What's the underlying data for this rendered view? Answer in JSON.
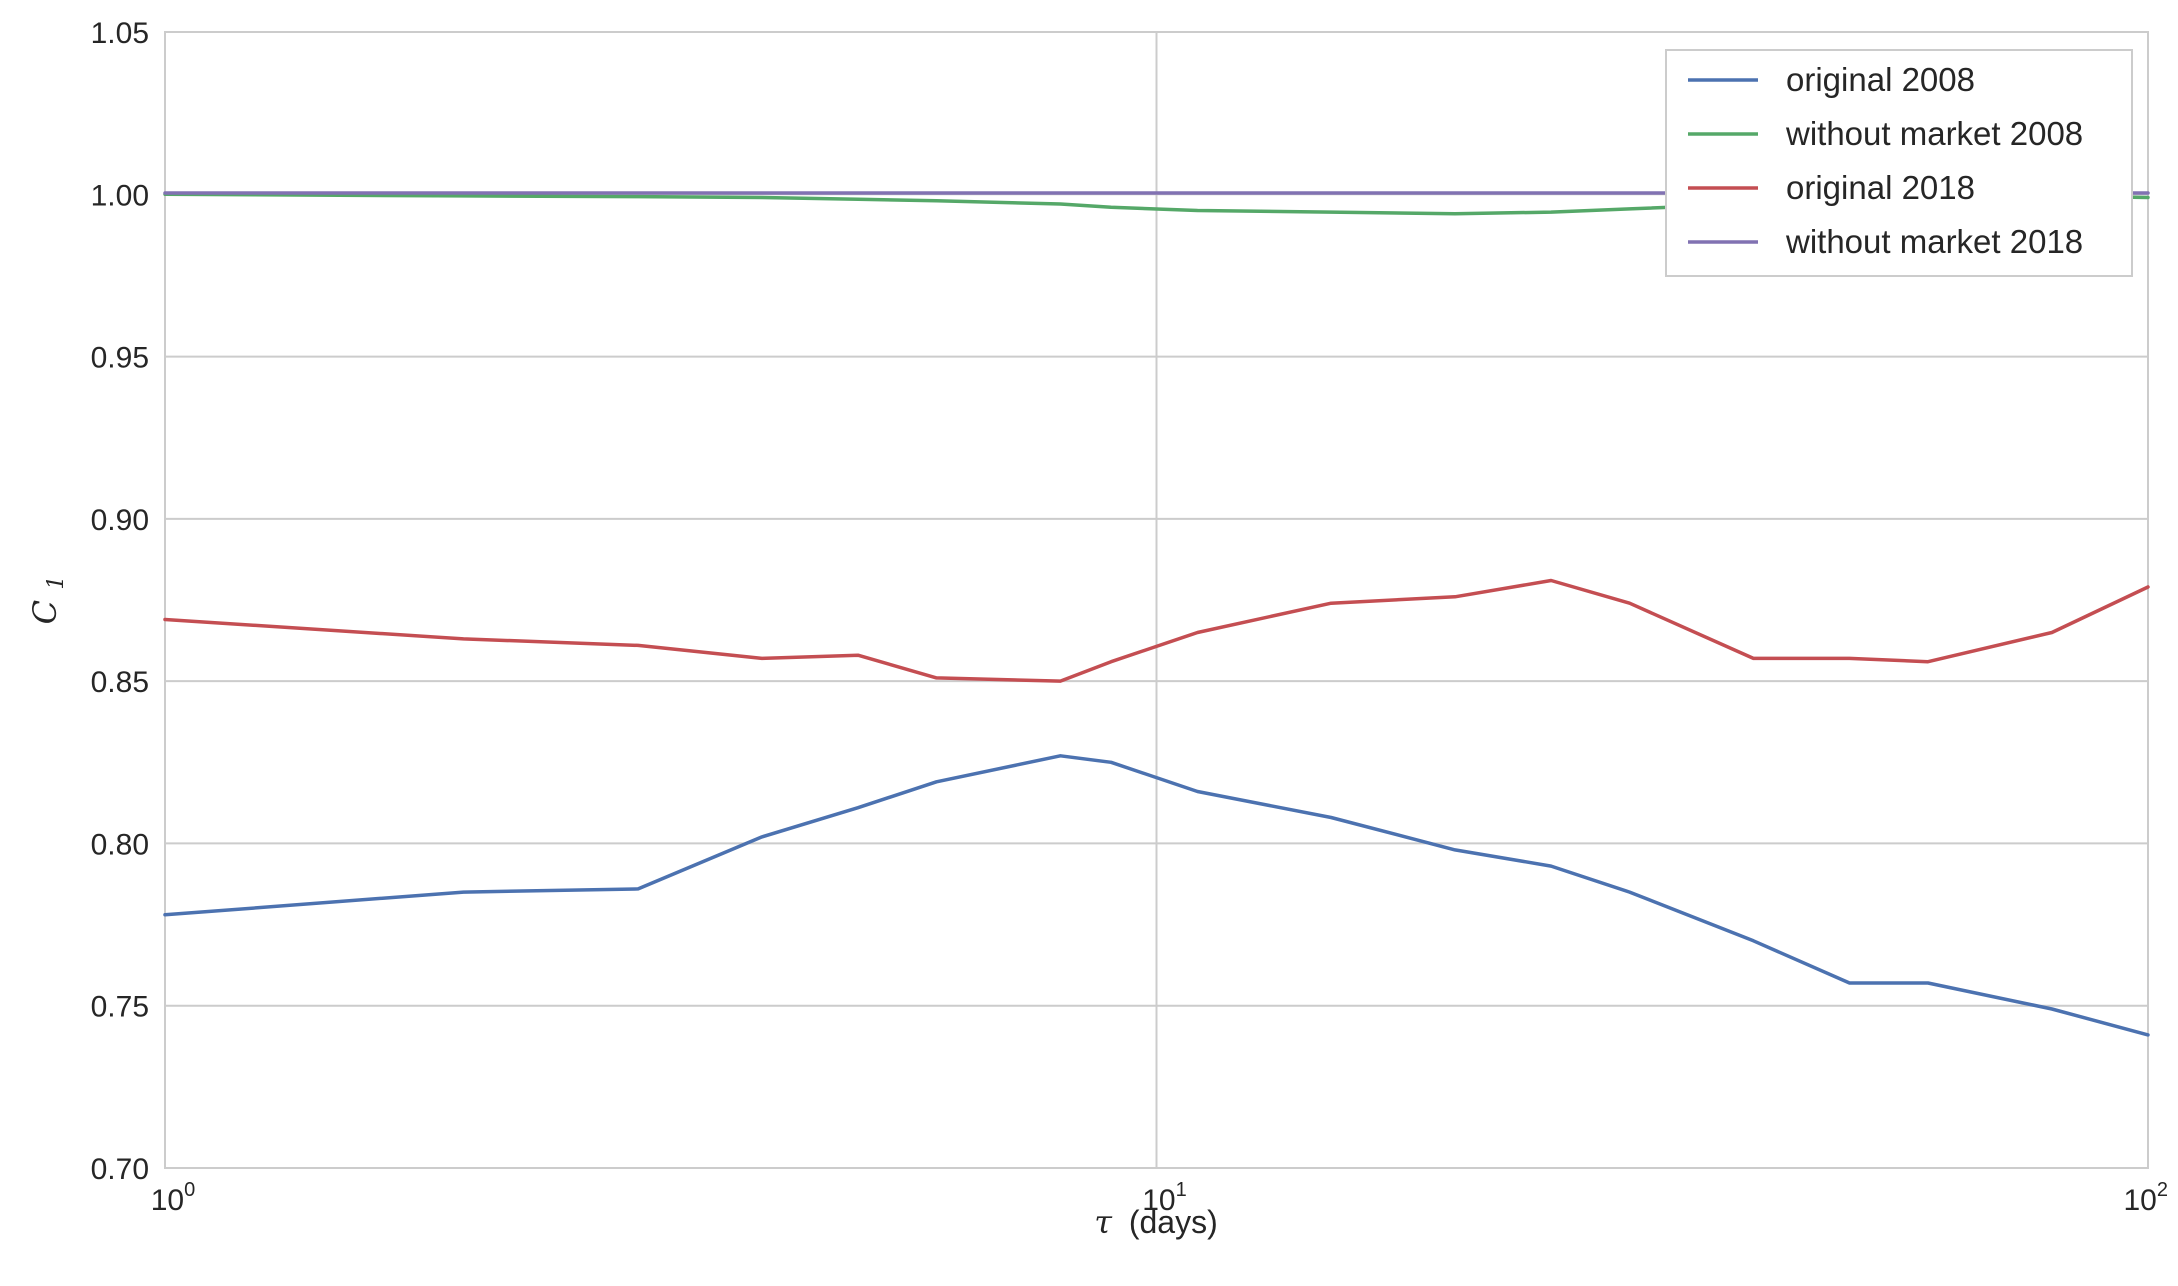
{
  "chart_data": {
    "type": "line",
    "xscale": "log",
    "xlabel_symbol": "τ",
    "xlabel": "(days)",
    "ylabel_symbol": "C",
    "ylabel_sub": "1",
    "xlim": [
      1,
      100
    ],
    "ylim": [
      0.7,
      1.05
    ],
    "grid": true,
    "legend_position": "top-right",
    "x_ticks": [
      {
        "value": 1,
        "base": "10",
        "exp": "0"
      },
      {
        "value": 10,
        "base": "10",
        "exp": "1"
      },
      {
        "value": 100,
        "base": "10",
        "exp": "2"
      }
    ],
    "y_ticks": [
      {
        "value": 0.7,
        "label": "0.70"
      },
      {
        "value": 0.75,
        "label": "0.75"
      },
      {
        "value": 0.8,
        "label": "0.80"
      },
      {
        "value": 0.85,
        "label": "0.85"
      },
      {
        "value": 0.9,
        "label": "0.90"
      },
      {
        "value": 0.95,
        "label": "0.95"
      },
      {
        "value": 1.0,
        "label": "1.00"
      },
      {
        "value": 1.05,
        "label": "1.05"
      }
    ],
    "x": [
      1,
      2,
      3,
      4,
      5,
      6,
      8,
      9,
      11,
      15,
      20,
      25,
      30,
      40,
      50,
      60,
      80,
      100
    ],
    "series": [
      {
        "name": "original 2008",
        "color": "#4c72b0",
        "values": [
          0.778,
          0.785,
          0.786,
          0.802,
          0.811,
          0.819,
          0.827,
          0.825,
          0.816,
          0.808,
          0.798,
          0.793,
          0.785,
          0.77,
          0.757,
          0.757,
          0.749,
          0.741
        ]
      },
      {
        "name": "without market 2008",
        "color": "#55a868",
        "values": [
          1.0,
          0.9995,
          0.9993,
          0.999,
          0.9985,
          0.998,
          0.997,
          0.996,
          0.995,
          0.9945,
          0.994,
          0.9945,
          0.9955,
          0.997,
          0.998,
          0.999,
          0.9995,
          0.999
        ]
      },
      {
        "name": "original 2018",
        "color": "#c44e52",
        "values": [
          0.869,
          0.863,
          0.861,
          0.857,
          0.858,
          0.851,
          0.85,
          0.856,
          0.865,
          0.874,
          0.876,
          0.881,
          0.874,
          0.857,
          0.857,
          0.856,
          0.865,
          0.879
        ]
      },
      {
        "name": "without market 2018",
        "color": "#8172b2",
        "values": [
          1.0004,
          1.0004,
          1.0004,
          1.0004,
          1.0004,
          1.0004,
          1.0004,
          1.0004,
          1.0004,
          1.0004,
          1.0004,
          1.0004,
          1.0004,
          1.0004,
          1.0004,
          1.0004,
          1.0004,
          1.0004
        ]
      }
    ]
  }
}
